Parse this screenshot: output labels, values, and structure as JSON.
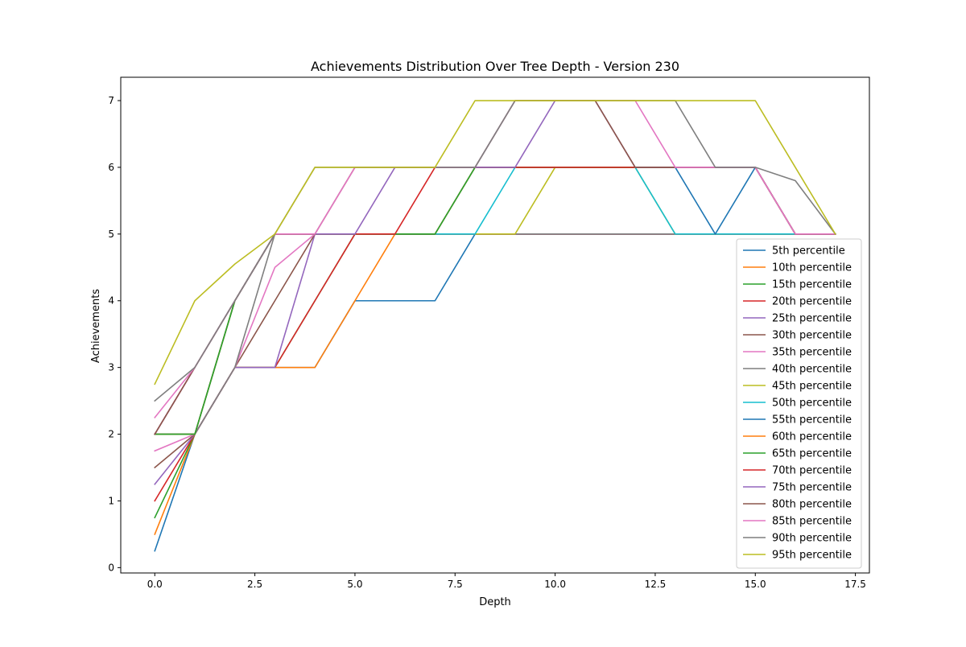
{
  "chart_data": {
    "type": "line",
    "title": "Achievements Distribution Over Tree Depth - Version 230",
    "xlabel": "Depth",
    "ylabel": "Achievements",
    "xlim": [
      -0.85,
      17.85
    ],
    "ylim": [
      -0.08,
      7.35
    ],
    "xticks": [
      0.0,
      2.5,
      5.0,
      7.5,
      10.0,
      12.5,
      15.0,
      17.5
    ],
    "xtick_labels": [
      "0.0",
      "2.5",
      "5.0",
      "7.5",
      "10.0",
      "12.5",
      "15.0",
      "17.5"
    ],
    "yticks": [
      0,
      1,
      2,
      3,
      4,
      5,
      6,
      7
    ],
    "ytick_labels": [
      "0",
      "1",
      "2",
      "3",
      "4",
      "5",
      "6",
      "7"
    ],
    "grid": false,
    "legend_position": "lower-right",
    "x": [
      0,
      1,
      2,
      3,
      4,
      5,
      6,
      7,
      8,
      9,
      10,
      11,
      12,
      13,
      14,
      15,
      16,
      17
    ],
    "series": [
      {
        "name": "5th percentile",
        "color": "#1f77b4",
        "values": [
          0.25,
          2,
          3,
          3,
          3,
          4,
          4,
          4,
          5,
          5,
          5,
          5,
          5,
          5,
          5,
          5,
          5,
          5
        ]
      },
      {
        "name": "10th percentile",
        "color": "#ff7f0e",
        "values": [
          0.5,
          2,
          3,
          3,
          3,
          4,
          5,
          5,
          5,
          5,
          5,
          5,
          5,
          5,
          5,
          5,
          5,
          5
        ]
      },
      {
        "name": "15th percentile",
        "color": "#2ca02c",
        "values": [
          0.75,
          2,
          3,
          3,
          4,
          5,
          5,
          5,
          5,
          5,
          5,
          5,
          5,
          5,
          5,
          5,
          5,
          5
        ]
      },
      {
        "name": "20th percentile",
        "color": "#d62728",
        "values": [
          1.0,
          2,
          3,
          3,
          4,
          5,
          5,
          5,
          5,
          5,
          5,
          5,
          5,
          5,
          5,
          5,
          5,
          5
        ]
      },
      {
        "name": "25th percentile",
        "color": "#9467bd",
        "values": [
          1.25,
          2,
          3,
          3,
          5,
          5,
          5,
          5,
          5,
          5,
          5,
          5,
          5,
          5,
          5,
          5,
          5,
          5
        ]
      },
      {
        "name": "30th percentile",
        "color": "#8c564b",
        "values": [
          1.5,
          2,
          3,
          4,
          5,
          5,
          5,
          5,
          5,
          5,
          5,
          5,
          5,
          5,
          5,
          5,
          5,
          5
        ]
      },
      {
        "name": "35th percentile",
        "color": "#e377c2",
        "values": [
          1.75,
          2,
          3,
          4.5,
          5,
          5,
          5,
          5,
          5,
          5,
          5,
          5,
          5,
          5,
          5,
          5,
          5,
          5
        ]
      },
      {
        "name": "40th percentile",
        "color": "#7f7f7f",
        "values": [
          2,
          2,
          3,
          5,
          5,
          5,
          5,
          5,
          5,
          5,
          5,
          5,
          5,
          5,
          5,
          5,
          5,
          5
        ]
      },
      {
        "name": "45th percentile",
        "color": "#bcbd22",
        "values": [
          2,
          2,
          4,
          5,
          5,
          5,
          5,
          5,
          5,
          5,
          6,
          6,
          6,
          5,
          5,
          5,
          5,
          5
        ]
      },
      {
        "name": "50th percentile",
        "color": "#17becf",
        "values": [
          2,
          2,
          4,
          5,
          5,
          5,
          5,
          5,
          5,
          6,
          6,
          6,
          6,
          5,
          5,
          5,
          5,
          5
        ]
      },
      {
        "name": "55th percentile",
        "color": "#1f77b4",
        "values": [
          2,
          2,
          4,
          5,
          5,
          5,
          5,
          5,
          6,
          6,
          6,
          6,
          6,
          6,
          5,
          6,
          5,
          5
        ]
      },
      {
        "name": "60th percentile",
        "color": "#ff7f0e",
        "values": [
          2,
          2,
          4,
          5,
          5,
          5,
          5,
          5,
          6,
          6,
          6,
          6,
          6,
          6,
          6,
          6,
          5,
          5
        ]
      },
      {
        "name": "65th percentile",
        "color": "#2ca02c",
        "values": [
          2,
          2,
          4,
          5,
          5,
          5,
          5,
          5,
          6,
          6,
          6,
          6,
          6,
          6,
          6,
          6,
          5,
          5
        ]
      },
      {
        "name": "70th percentile",
        "color": "#d62728",
        "values": [
          2,
          3,
          4,
          5,
          5,
          5,
          5,
          6,
          6,
          6,
          6,
          6,
          6,
          6,
          6,
          6,
          5,
          5
        ]
      },
      {
        "name": "75th percentile",
        "color": "#9467bd",
        "values": [
          2,
          3,
          4,
          5,
          5,
          5,
          6,
          6,
          6,
          6,
          7,
          7,
          6,
          6,
          6,
          6,
          5,
          5
        ]
      },
      {
        "name": "80th percentile",
        "color": "#8c564b",
        "values": [
          2,
          3,
          4,
          5,
          5,
          6,
          6,
          6,
          6,
          7,
          7,
          7,
          6,
          6,
          6,
          6,
          5,
          5
        ]
      },
      {
        "name": "85th percentile",
        "color": "#e377c2",
        "values": [
          2.25,
          3,
          4,
          5,
          5,
          6,
          6,
          6,
          6,
          7,
          7,
          7,
          7,
          6,
          6,
          6,
          5,
          5
        ]
      },
      {
        "name": "90th percentile",
        "color": "#7f7f7f",
        "values": [
          2.5,
          3,
          4,
          5,
          6,
          6,
          6,
          6,
          6,
          7,
          7,
          7,
          7,
          7,
          6,
          6,
          5.8,
          5
        ]
      },
      {
        "name": "95th percentile",
        "color": "#bcbd22",
        "values": [
          2.75,
          4,
          4.55,
          5,
          6,
          6,
          6,
          6,
          7,
          7,
          7,
          7,
          7,
          7,
          7,
          7,
          6,
          5
        ]
      }
    ]
  }
}
